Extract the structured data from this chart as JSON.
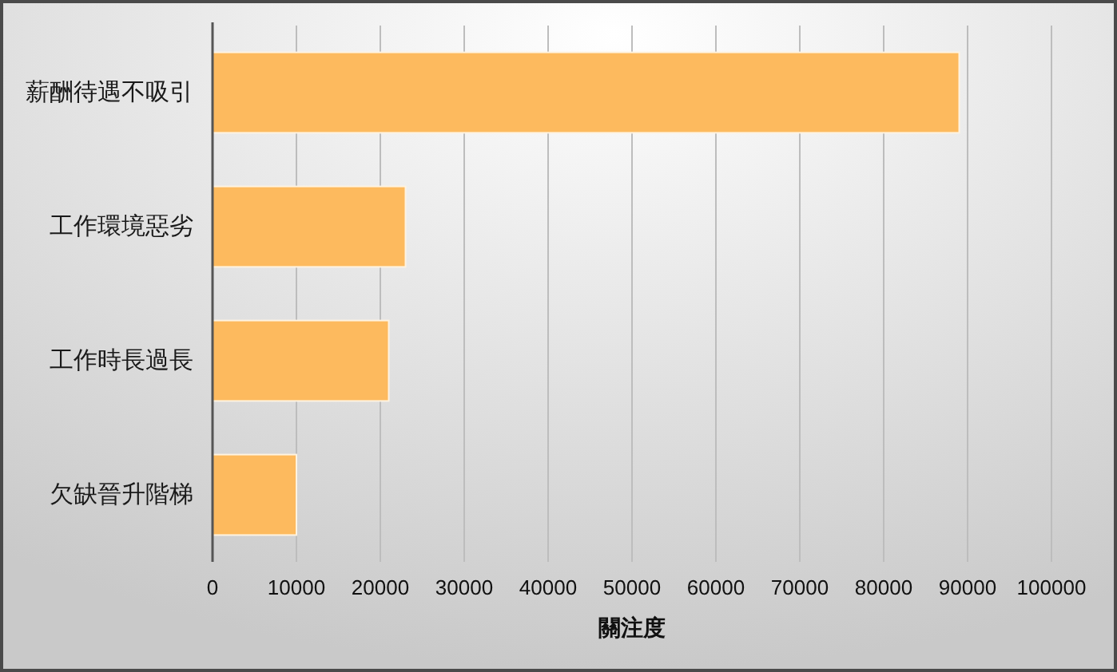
{
  "chart_data": {
    "type": "bar",
    "orientation": "horizontal",
    "categories": [
      "薪酬待遇不吸引",
      "工作環境惡劣",
      "工作時長過長",
      "欠缺晉升階梯"
    ],
    "values": [
      89000,
      23000,
      21000,
      10000
    ],
    "color": "#fdba5e",
    "xlabel": "關注度",
    "xlim": [
      0,
      100000
    ],
    "xticks": [
      0,
      10000,
      20000,
      30000,
      40000,
      50000,
      60000,
      70000,
      80000,
      90000,
      100000
    ],
    "grid": "x"
  }
}
